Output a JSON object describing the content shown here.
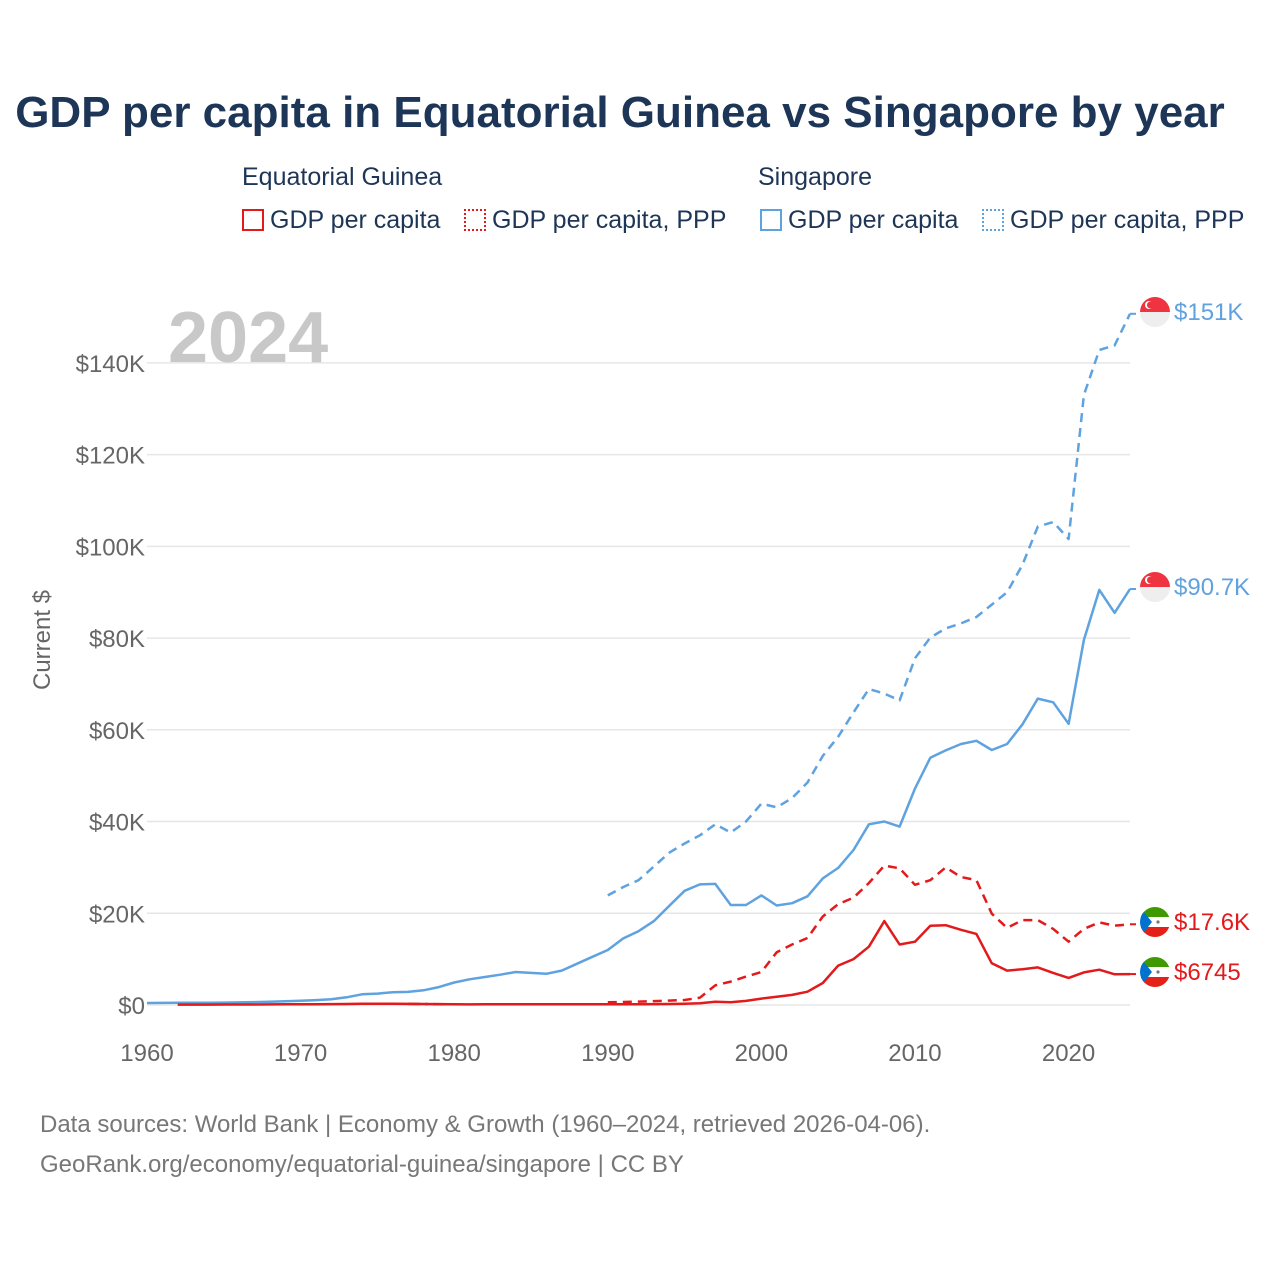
{
  "title": "GDP per capita in Equatorial Guinea vs Singapore by year",
  "colors": {
    "eq_guinea": "#e31a1c",
    "singapore": "#5fa2e0",
    "grid": "#e6e6e6",
    "axis_text": "#666666",
    "year_watermark": "#c8c8c8"
  },
  "legend": {
    "groups": [
      {
        "country": "Equatorial Guinea",
        "items": [
          "GDP per capita",
          "GDP per capita, PPP"
        ]
      },
      {
        "country": "Singapore",
        "items": [
          "GDP per capita",
          "GDP per capita, PPP"
        ]
      }
    ]
  },
  "chart_data": {
    "type": "line",
    "title": "GDP per capita in Equatorial Guinea vs Singapore by year",
    "year_label": "2024",
    "xlabel": "",
    "ylabel": "Current $",
    "xlim": [
      1960,
      2024
    ],
    "ylim": [
      0,
      150000
    ],
    "x_ticks": [
      1960,
      1970,
      1980,
      1990,
      2000,
      2010,
      2020
    ],
    "x_tick_labels": [
      "1960",
      "1970",
      "1980",
      "1990",
      "2000",
      "2010",
      "2020"
    ],
    "y_ticks": [
      0,
      20000,
      40000,
      60000,
      80000,
      100000,
      120000,
      140000
    ],
    "y_tick_labels": [
      "$0",
      "$20K",
      "$40K",
      "$60K",
      "$80K",
      "$100K",
      "$120K",
      "$140K"
    ],
    "grid": true,
    "series": [
      {
        "name": "Singapore GDP per capita",
        "country": "Singapore",
        "style": "solid",
        "color": "#5fa2e0",
        "end_label": "$90.7K",
        "points": [
          [
            1960,
            428
          ],
          [
            1961,
            449
          ],
          [
            1962,
            472
          ],
          [
            1963,
            511
          ],
          [
            1964,
            485
          ],
          [
            1965,
            516
          ],
          [
            1966,
            566
          ],
          [
            1967,
            626
          ],
          [
            1968,
            708
          ],
          [
            1969,
            812
          ],
          [
            1970,
            926
          ],
          [
            1971,
            1071
          ],
          [
            1972,
            1264
          ],
          [
            1973,
            1685
          ],
          [
            1974,
            2341
          ],
          [
            1975,
            2490
          ],
          [
            1976,
            2770
          ],
          [
            1977,
            2850
          ],
          [
            1978,
            3200
          ],
          [
            1979,
            3900
          ],
          [
            1980,
            4900
          ],
          [
            1981,
            5600
          ],
          [
            1982,
            6100
          ],
          [
            1983,
            6600
          ],
          [
            1984,
            7200
          ],
          [
            1985,
            7000
          ],
          [
            1986,
            6800
          ],
          [
            1987,
            7500
          ],
          [
            1988,
            9000
          ],
          [
            1989,
            10500
          ],
          [
            1990,
            12000
          ],
          [
            1991,
            14500
          ],
          [
            1992,
            16100
          ],
          [
            1993,
            18300
          ],
          [
            1994,
            21600
          ],
          [
            1995,
            24900
          ],
          [
            1996,
            26300
          ],
          [
            1997,
            26400
          ],
          [
            1998,
            21800
          ],
          [
            1999,
            21800
          ],
          [
            2000,
            23900
          ],
          [
            2001,
            21700
          ],
          [
            2002,
            22200
          ],
          [
            2003,
            23700
          ],
          [
            2004,
            27600
          ],
          [
            2005,
            29900
          ],
          [
            2006,
            33800
          ],
          [
            2007,
            39400
          ],
          [
            2008,
            40000
          ],
          [
            2009,
            38900
          ],
          [
            2010,
            47200
          ],
          [
            2011,
            53900
          ],
          [
            2012,
            55500
          ],
          [
            2013,
            56900
          ],
          [
            2014,
            57600
          ],
          [
            2015,
            55600
          ],
          [
            2016,
            56900
          ],
          [
            2017,
            61200
          ],
          [
            2018,
            66800
          ],
          [
            2019,
            66000
          ],
          [
            2020,
            61300
          ],
          [
            2021,
            79600
          ],
          [
            2022,
            90500
          ],
          [
            2023,
            85500
          ],
          [
            2024,
            90700
          ]
        ]
      },
      {
        "name": "Singapore GDP per capita, PPP",
        "country": "Singapore",
        "style": "dashed",
        "color": "#5fa2e0",
        "end_label": "$151K",
        "points": [
          [
            1990,
            23900
          ],
          [
            1991,
            25700
          ],
          [
            1992,
            27200
          ],
          [
            1993,
            30200
          ],
          [
            1994,
            33200
          ],
          [
            1995,
            35200
          ],
          [
            1996,
            37000
          ],
          [
            1997,
            39400
          ],
          [
            1998,
            37600
          ],
          [
            1999,
            40000
          ],
          [
            2000,
            43900
          ],
          [
            2001,
            43100
          ],
          [
            2002,
            45100
          ],
          [
            2003,
            48500
          ],
          [
            2004,
            54300
          ],
          [
            2005,
            58500
          ],
          [
            2006,
            63800
          ],
          [
            2007,
            68900
          ],
          [
            2008,
            67900
          ],
          [
            2009,
            66400
          ],
          [
            2010,
            75600
          ],
          [
            2011,
            80100
          ],
          [
            2012,
            82100
          ],
          [
            2013,
            83200
          ],
          [
            2014,
            84600
          ],
          [
            2015,
            87300
          ],
          [
            2016,
            90000
          ],
          [
            2017,
            96000
          ],
          [
            2018,
            104300
          ],
          [
            2019,
            105300
          ],
          [
            2020,
            101600
          ],
          [
            2021,
            133000
          ],
          [
            2022,
            142800
          ],
          [
            2023,
            143800
          ],
          [
            2024,
            150700
          ]
        ]
      },
      {
        "name": "Equatorial Guinea GDP per capita",
        "country": "Equatorial Guinea",
        "style": "solid",
        "color": "#e31a1c",
        "end_label": "$6745",
        "points": [
          [
            1962,
            80
          ],
          [
            1963,
            85
          ],
          [
            1964,
            90
          ],
          [
            1965,
            100
          ],
          [
            1966,
            105
          ],
          [
            1967,
            115
          ],
          [
            1968,
            130
          ],
          [
            1969,
            150
          ],
          [
            1970,
            160
          ],
          [
            1971,
            170
          ],
          [
            1972,
            190
          ],
          [
            1973,
            220
          ],
          [
            1974,
            260
          ],
          [
            1975,
            280
          ],
          [
            1976,
            260
          ],
          [
            1977,
            240
          ],
          [
            1980,
            150
          ],
          [
            1981,
            140
          ],
          [
            1982,
            145
          ],
          [
            1983,
            150
          ],
          [
            1984,
            150
          ],
          [
            1985,
            160
          ],
          [
            1986,
            170
          ],
          [
            1987,
            170
          ],
          [
            1988,
            170
          ],
          [
            1989,
            160
          ],
          [
            1990,
            160
          ],
          [
            1991,
            160
          ],
          [
            1992,
            180
          ],
          [
            1993,
            200
          ],
          [
            1994,
            210
          ],
          [
            1995,
            280
          ],
          [
            1996,
            370
          ],
          [
            1997,
            700
          ],
          [
            1998,
            580
          ],
          [
            1999,
            900
          ],
          [
            2000,
            1400
          ],
          [
            2001,
            1800
          ],
          [
            2002,
            2200
          ],
          [
            2003,
            2900
          ],
          [
            2004,
            4800
          ],
          [
            2005,
            8600
          ],
          [
            2006,
            10000
          ],
          [
            2007,
            12700
          ],
          [
            2008,
            18300
          ],
          [
            2009,
            13200
          ],
          [
            2010,
            13800
          ],
          [
            2011,
            17300
          ],
          [
            2012,
            17400
          ],
          [
            2013,
            16400
          ],
          [
            2014,
            15500
          ],
          [
            2015,
            9100
          ],
          [
            2016,
            7500
          ],
          [
            2017,
            7800
          ],
          [
            2018,
            8200
          ],
          [
            2019,
            7000
          ],
          [
            2020,
            5900
          ],
          [
            2021,
            7100
          ],
          [
            2022,
            7700
          ],
          [
            2023,
            6700
          ],
          [
            2024,
            6745
          ]
        ]
      },
      {
        "name": "Equatorial Guinea GDP per capita (gap)",
        "country": "Equatorial Guinea",
        "style": "dashdot",
        "color": "#e31a1c",
        "end_label": "",
        "points": [
          [
            1977,
            240
          ],
          [
            1980,
            150
          ]
        ]
      },
      {
        "name": "Equatorial Guinea GDP per capita, PPP",
        "country": "Equatorial Guinea",
        "style": "dashed",
        "color": "#e31a1c",
        "end_label": "$17.6K",
        "points": [
          [
            1990,
            600
          ],
          [
            1991,
            650
          ],
          [
            1992,
            750
          ],
          [
            1993,
            850
          ],
          [
            1994,
            950
          ],
          [
            1995,
            1100
          ],
          [
            1996,
            1600
          ],
          [
            1997,
            4300
          ],
          [
            1998,
            5100
          ],
          [
            1999,
            6200
          ],
          [
            2000,
            7200
          ],
          [
            2001,
            11500
          ],
          [
            2002,
            13200
          ],
          [
            2003,
            14600
          ],
          [
            2004,
            19300
          ],
          [
            2005,
            22000
          ],
          [
            2006,
            23400
          ],
          [
            2007,
            26600
          ],
          [
            2008,
            30400
          ],
          [
            2009,
            29800
          ],
          [
            2010,
            26200
          ],
          [
            2011,
            27200
          ],
          [
            2012,
            30000
          ],
          [
            2013,
            27900
          ],
          [
            2014,
            27200
          ],
          [
            2015,
            19900
          ],
          [
            2016,
            16800
          ],
          [
            2017,
            18500
          ],
          [
            2018,
            18500
          ],
          [
            2019,
            16600
          ],
          [
            2020,
            13800
          ],
          [
            2021,
            16600
          ],
          [
            2022,
            18000
          ],
          [
            2023,
            17300
          ],
          [
            2024,
            17600
          ]
        ]
      }
    ]
  },
  "sources": {
    "line1": "Data sources: World Bank | Economy & Growth (1960–2024, retrieved 2026-04-06).",
    "line2": "GeoRank.org/economy/equatorial-guinea/singapore | CC BY"
  }
}
